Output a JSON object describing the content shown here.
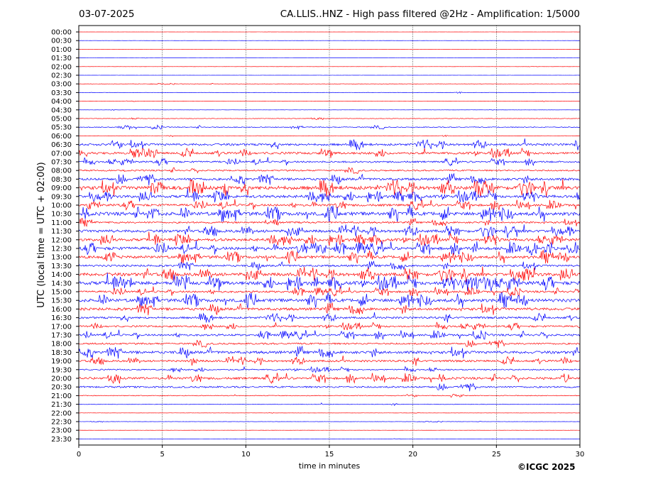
{
  "header": {
    "date": "03-07-2025",
    "title": "CA.LLIS..HNZ - High pass filtered @2Hz - Amplification: 1/5000"
  },
  "footer": {
    "copyright": "©ICGC 2025"
  },
  "chart_data": {
    "type": "line",
    "subtype": "helicorder",
    "xlabel": "time in minutes",
    "ylabel": "UTC (local time = UTC + 02:00)",
    "xlim": [
      0,
      30
    ],
    "xticks": [
      0,
      5,
      10,
      15,
      20,
      25,
      30
    ],
    "grid_x": true,
    "colors": {
      "odd_trace": "#ff0000",
      "even_trace": "#0000ff"
    },
    "trace_labels": [
      "00:00",
      "00:30",
      "01:00",
      "01:30",
      "02:00",
      "02:30",
      "03:00",
      "03:30",
      "04:00",
      "04:30",
      "05:00",
      "05:30",
      "06:00",
      "06:30",
      "07:00",
      "07:30",
      "08:00",
      "08:30",
      "09:00",
      "09:30",
      "10:00",
      "10:30",
      "11:00",
      "11:30",
      "12:00",
      "12:30",
      "13:00",
      "13:30",
      "14:00",
      "14:30",
      "15:00",
      "15:30",
      "16:00",
      "16:30",
      "17:00",
      "17:30",
      "18:00",
      "18:30",
      "19:00",
      "19:30",
      "20:00",
      "20:30",
      "21:00",
      "21:30",
      "22:00",
      "22:30",
      "23:00",
      "23:30"
    ],
    "trace_activity": [
      0.02,
      0.02,
      0.02,
      0.02,
      0.02,
      0.02,
      0.06,
      0.08,
      0.05,
      0.04,
      0.1,
      0.18,
      0.08,
      0.45,
      0.45,
      0.35,
      0.3,
      0.5,
      0.75,
      0.55,
      0.45,
      0.7,
      0.35,
      0.55,
      0.55,
      0.6,
      0.55,
      0.4,
      0.65,
      0.7,
      0.4,
      0.65,
      0.55,
      0.4,
      0.35,
      0.4,
      0.35,
      0.55,
      0.4,
      0.25,
      0.45,
      0.35,
      0.15,
      0.1,
      0.04,
      0.05,
      0.03,
      0.03
    ]
  }
}
